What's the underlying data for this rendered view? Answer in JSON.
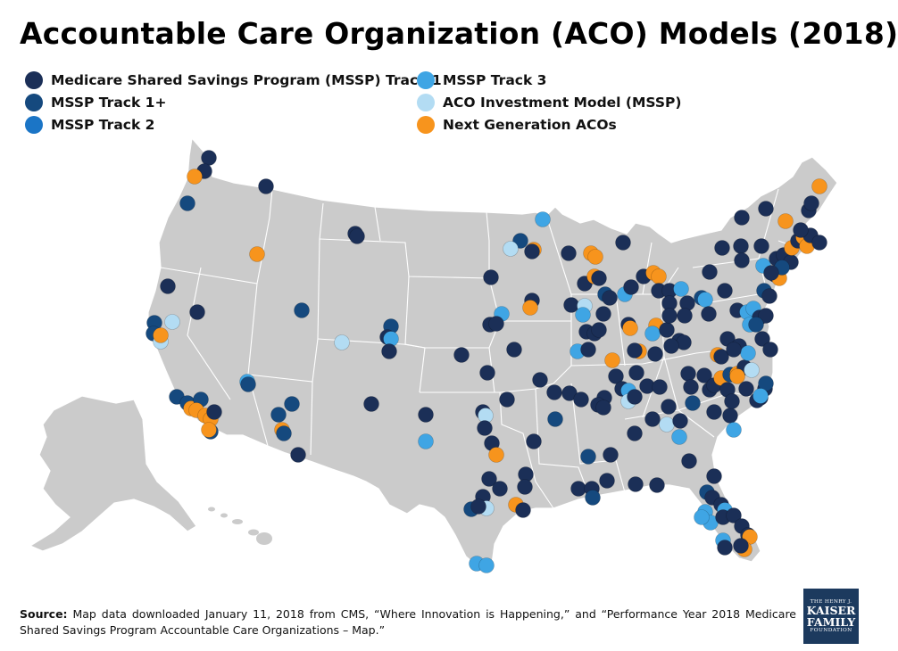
{
  "title": "Accountable Care Organization (ACO) Models (2018)",
  "legend": [
    {
      "key": "t1",
      "label": "Medicare Shared Savings Program (MSSP) Track 1",
      "color": "#1b2f57"
    },
    {
      "key": "t1p",
      "label": "MSSP Track 1+",
      "color": "#15497e"
    },
    {
      "key": "t2",
      "label": "MSSP Track 2",
      "color": "#1b75c6"
    },
    {
      "key": "t3",
      "label": "MSSP Track 3",
      "color": "#3fa5e4"
    },
    {
      "key": "aim",
      "label": "ACO Investment Model (MSSP)",
      "color": "#b3dcf3"
    },
    {
      "key": "ng",
      "label": "Next Generation ACOs",
      "color": "#f7941d"
    }
  ],
  "source": {
    "label": "Source:",
    "text": "Map data downloaded January 11, 2018 from CMS, “Where Innovation is Happening,” and “Performance Year 2018 Medicare Shared Savings Program Accountable Care Organizations – Map.”"
  },
  "logo": {
    "line1": "THE HENRY J.",
    "line2": "KAISER",
    "line3": "FAMILY",
    "line4": "FOUNDATION"
  },
  "map_colors": {
    "land": "#cbcbcb",
    "border": "#ffffff"
  }
}
